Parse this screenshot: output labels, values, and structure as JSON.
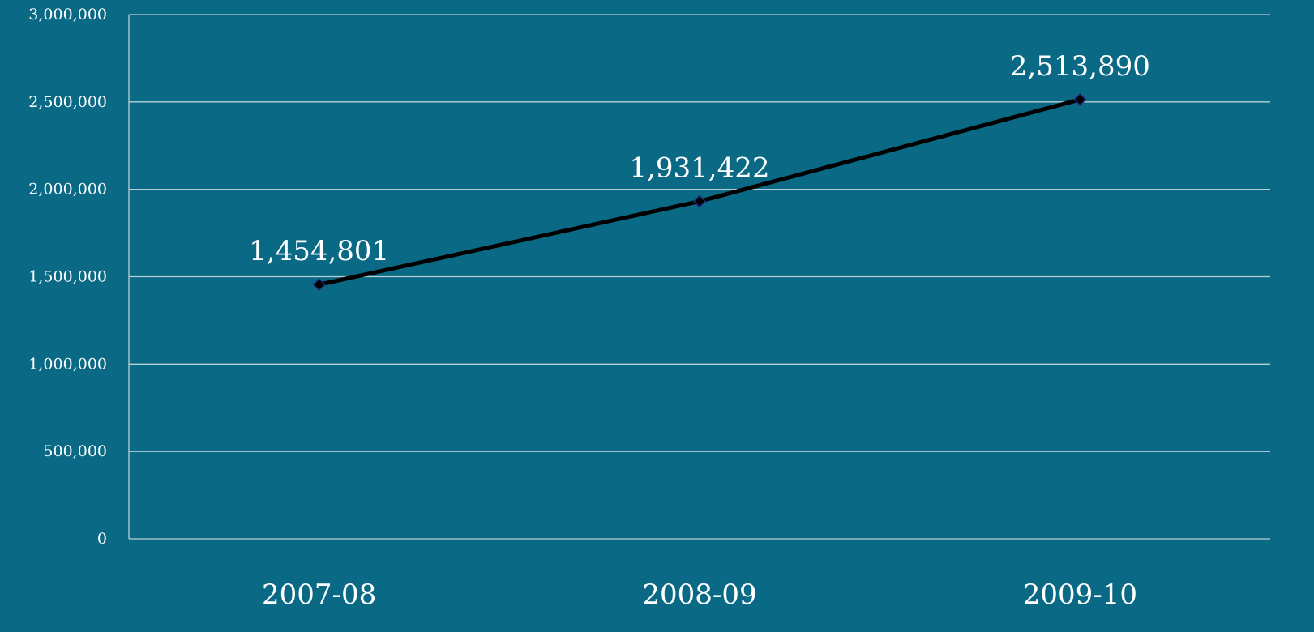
{
  "chart_data": {
    "type": "line",
    "categories": [
      "2007-08",
      "2008-09",
      "2009-10"
    ],
    "series": [
      {
        "values": [
          1454801,
          1931422,
          2513890
        ]
      }
    ],
    "data_labels": [
      "1,454,801",
      "1,931,422",
      "2,513,890"
    ],
    "y_ticks": [
      0,
      500000,
      1000000,
      1500000,
      2000000,
      2500000,
      3000000
    ],
    "y_tick_labels": [
      "0",
      "500,000",
      "1,000,000",
      "1,500,000",
      "2,000,000",
      "2,500,000",
      "3,000,000"
    ],
    "ylim": [
      0,
      3000000
    ],
    "grid": true,
    "legend": "none",
    "title": "",
    "xlabel": "",
    "ylabel": "",
    "colors": {
      "background": "#0a6985",
      "gridline": "#b9cfd6",
      "line": "#000000",
      "marker_fill": "#000000",
      "marker_stroke": "#1c2b7a",
      "text": "#ffffff"
    }
  }
}
